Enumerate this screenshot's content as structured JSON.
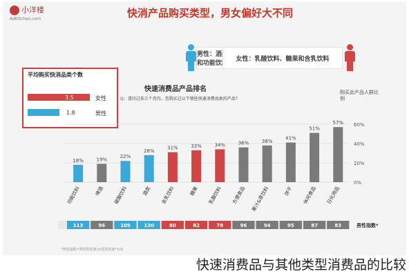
{
  "header": {
    "logo_text": "小洋楼",
    "logo_sub": "AdKitchen.com",
    "headline": "快消产品购买类型，男女偏好大不同"
  },
  "insights": {
    "male": "男性：酒类、碳酸饮料和功能饮料",
    "female": "女性：乳酸饮料、糖果和含乳饮料"
  },
  "chart_title": "快速消费品产品排名",
  "question": "Q：请问过去三个月内，您购买过以下哪些快速消费品类的产品？",
  "legend_title": "购买此产品人群比例",
  "inset": {
    "title": "平均购买快消品类个数",
    "rows": [
      {
        "label": "女性",
        "value": 3.5,
        "value_text": "3.5"
      },
      {
        "label": "男性",
        "value": 1.8,
        "value_text": "1.8"
      }
    ]
  },
  "gender_index_label": "男性指数*",
  "footnote": "*男性指数=男性购买率/女性购买率*100",
  "caption": "快速消费品与其他类型消费品的比较",
  "colors": {
    "male": "#3aa8d8",
    "female": "#d04545",
    "neutral": "#7a7a7a",
    "headline": "#c0392b"
  },
  "chart_data": {
    "type": "bar",
    "title": "快速消费品产品排名",
    "ylabel": "购买此产品人群比例",
    "ylim": [
      0,
      60
    ],
    "yticks": [
      "0%",
      "20%",
      "40%",
      "60%"
    ],
    "categories": [
      "功能饮料",
      "啤酒",
      "碳酸饮料",
      "酒类",
      "含乳饮料",
      "糖果",
      "乳酸饮料",
      "方便食品",
      "果汁&茶饮料",
      "饼干",
      "休闲食品",
      "日化用品"
    ],
    "values": [
      18,
      19,
      22,
      28,
      31,
      33,
      34,
      36,
      38,
      41,
      51,
      57
    ],
    "value_labels": [
      "18%",
      "19%",
      "22%",
      "28%",
      "31%",
      "33%",
      "34%",
      "36%",
      "38%",
      "41%",
      "51%",
      "57%"
    ],
    "bar_groups": [
      "male",
      "neutral",
      "male",
      "male",
      "female",
      "female",
      "female",
      "neutral",
      "neutral",
      "neutral",
      "neutral",
      "neutral"
    ],
    "gender_index": [
      "113",
      "96",
      "109",
      "130",
      "80",
      "82",
      "78",
      "96",
      "94",
      "95",
      "87",
      "83"
    ]
  }
}
